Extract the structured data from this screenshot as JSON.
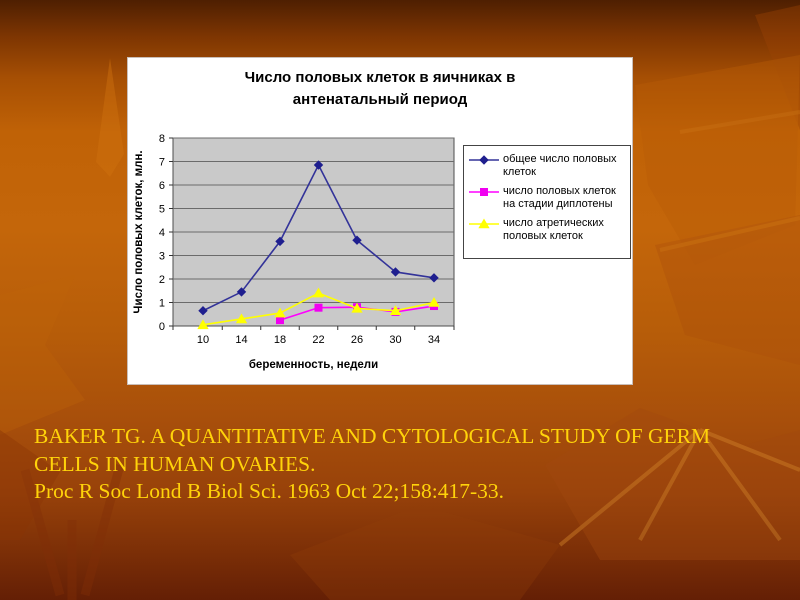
{
  "chart_window": {
    "title_line1": "Число половых клеток в яичниках в",
    "title_line2": "антенатальный период"
  },
  "chart_data": {
    "type": "line",
    "title": "Число половых клеток в яичниках в антенатальный период",
    "x": [
      10,
      14,
      18,
      22,
      26,
      30,
      34
    ],
    "xlabel": "беременность, недели",
    "ylabel": "Число половых клеток, млн.",
    "ylim": [
      0,
      8
    ],
    "yticks": [
      0,
      1,
      2,
      3,
      4,
      5,
      6,
      7,
      8
    ],
    "grid": true,
    "legend_position": "right",
    "plot_bg": "#c9c9c9",
    "grid_color": "#6b6b6b",
    "series": [
      {
        "name": "общее число половых клеток",
        "marker": "diamond",
        "color": "#333399",
        "marker_color": "#1f1f8f",
        "values": [
          0.65,
          1.45,
          3.6,
          6.85,
          3.65,
          2.3,
          2.05
        ]
      },
      {
        "name": "число половых клеток на стадии диплотены",
        "marker": "square",
        "color": "#ff00ff",
        "marker_color": "#f000f0",
        "values": [
          null,
          null,
          0.25,
          0.78,
          0.8,
          0.6,
          0.85
        ]
      },
      {
        "name": "число атретических половых клеток",
        "marker": "triangle",
        "color": "#ffff00",
        "marker_color": "#ffff00",
        "values": [
          0.05,
          0.3,
          0.55,
          1.4,
          0.75,
          0.65,
          1.0
        ]
      }
    ]
  },
  "citation": {
    "lines": [
      "BAKER TG. A QUANTITATIVE AND CYTOLOGICAL STUDY OF GERM",
      "CELLS IN HUMAN OVARIES.",
      "Proc R Soc Lond B Biol Sci. 1963 Oct 22;158:417-33."
    ],
    "color": "#ffd30a"
  }
}
